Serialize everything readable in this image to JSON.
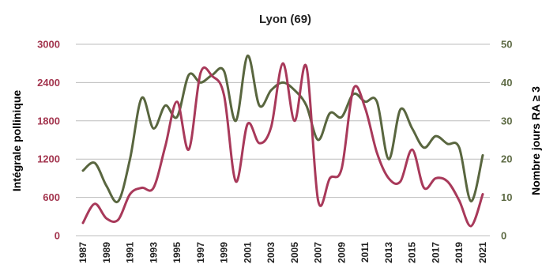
{
  "chart_data": {
    "type": "line",
    "title": "Lyon (69)",
    "ylabel_left": "Intégrale pollinique",
    "ylabel_right": "Nombre jours RA ≥ 3",
    "ylim_left": [
      0,
      3000
    ],
    "ylim_right": [
      0,
      50
    ],
    "yticks_left": [
      "0",
      "600",
      "1200",
      "1800",
      "2400",
      "3000"
    ],
    "yticks_right": [
      "0",
      "10",
      "20",
      "30",
      "40",
      "50"
    ],
    "xtick_labels": [
      "1987",
      "1989",
      "1991",
      "1993",
      "1995",
      "1997",
      "1999",
      "2001",
      "2003",
      "2005",
      "2007",
      "2009",
      "2011",
      "2013",
      "2015",
      "2017",
      "2019",
      "2021"
    ],
    "grid": true,
    "colors": {
      "left_axis": "#a3364f",
      "right_axis": "#5e6b45"
    },
    "x": [
      1987,
      1988,
      1989,
      1990,
      1991,
      1992,
      1993,
      1994,
      1995,
      1996,
      1997,
      1998,
      1999,
      2000,
      2001,
      2002,
      2003,
      2004,
      2005,
      2006,
      2007,
      2008,
      2009,
      2010,
      2011,
      2012,
      2013,
      2014,
      2015,
      2016,
      2017,
      2018,
      2019,
      2020,
      2021
    ],
    "series": [
      {
        "axis": "left",
        "color": "#a8395a",
        "values": [
          200,
          500,
          270,
          250,
          650,
          750,
          750,
          1400,
          2100,
          1350,
          2550,
          2500,
          2200,
          850,
          1750,
          1450,
          1700,
          2700,
          1800,
          2650,
          550,
          900,
          1050,
          2300,
          2000,
          1300,
          900,
          850,
          1350,
          750,
          900,
          850,
          550,
          150,
          650
        ]
      },
      {
        "axis": "right",
        "color": "#59663f",
        "values": [
          17,
          19,
          13,
          9,
          20,
          36,
          28,
          34,
          31,
          42,
          40,
          42,
          43,
          30,
          47,
          34,
          38,
          40,
          38,
          34,
          25,
          32,
          31,
          37,
          35,
          35,
          20,
          33,
          28,
          23,
          26,
          24,
          23,
          9,
          21
        ]
      }
    ]
  }
}
